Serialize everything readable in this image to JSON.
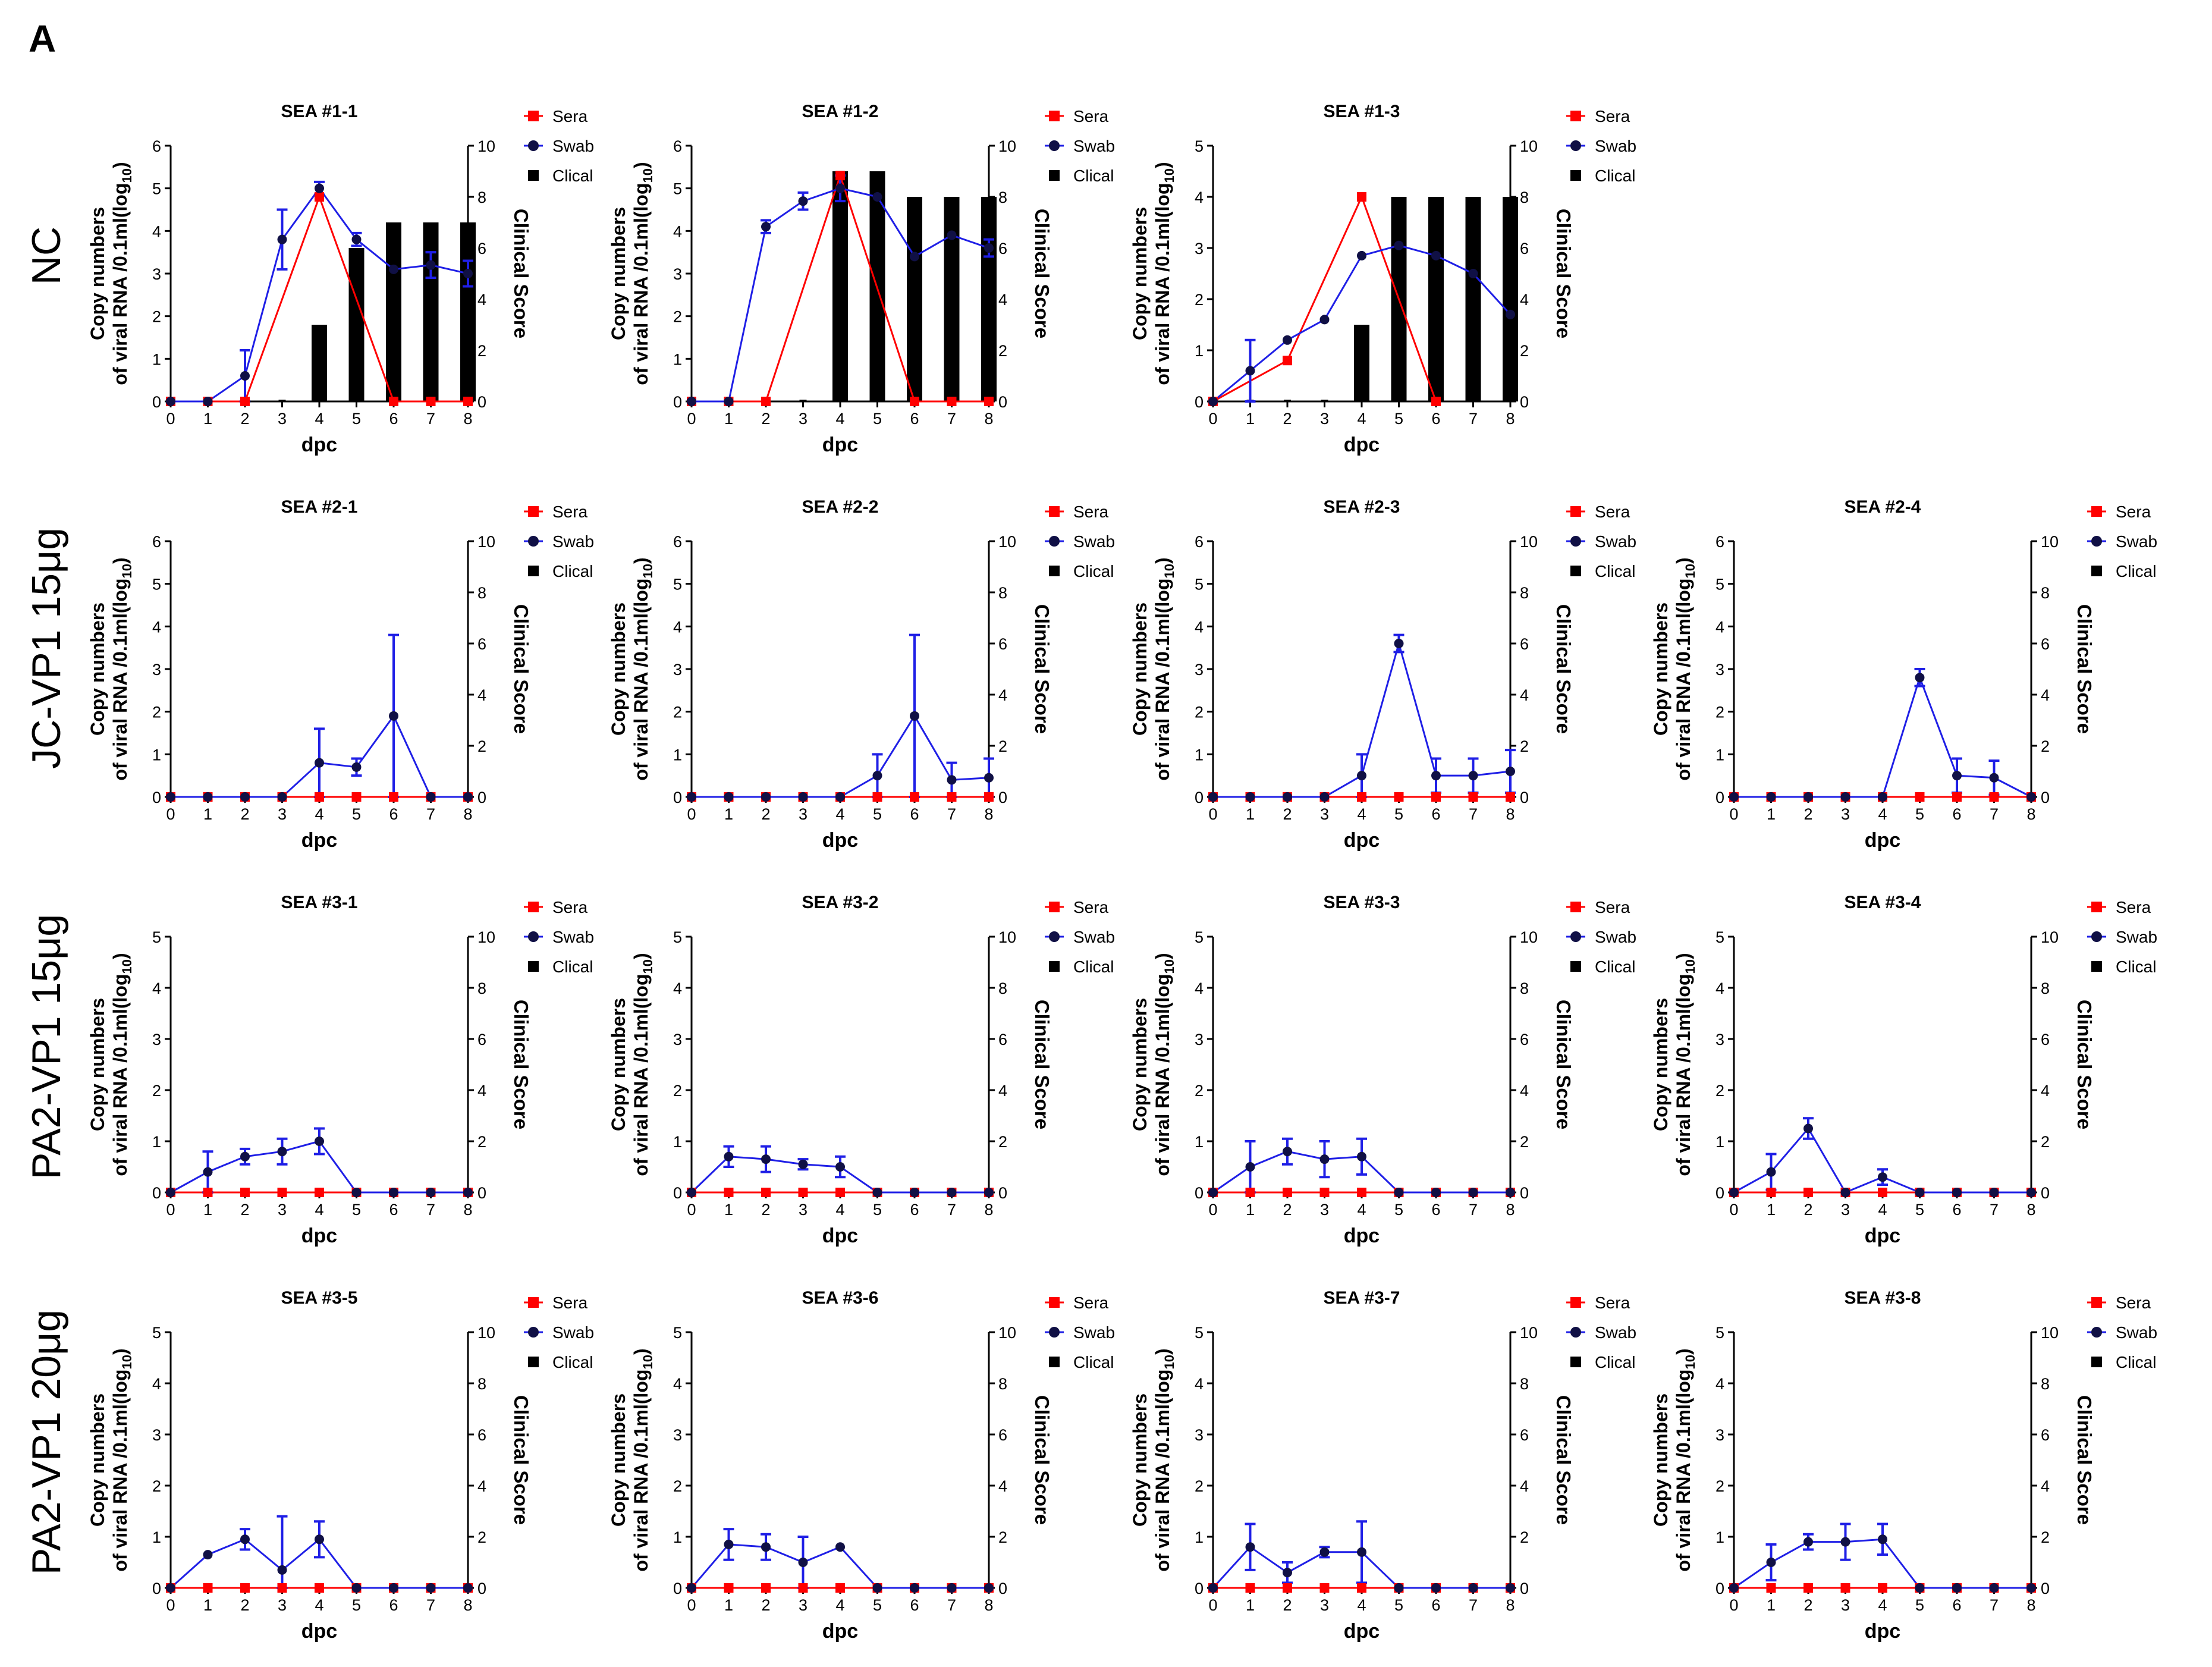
{
  "figure": {
    "panel_letter": "A",
    "rows": [
      "NC",
      "JC-VP1 15μg",
      "PA2-VP1 15μg",
      "PA2-VP1 20μg"
    ],
    "legend": {
      "sera": "Sera",
      "swab": "Swab",
      "clinical": "Clical"
    },
    "colors": {
      "sera": "#ff0000",
      "swab": "#1f1fe6",
      "clinical": "#000000",
      "marker_swab": "#101045"
    },
    "axis": {
      "xlabel": "dpc",
      "ylabel_line1": "Copy numbers",
      "ylabel_line2": "of viral RNA /0.1ml(log",
      "ylabel_sub": "10",
      "ylabel_end": ")",
      "y2label": "Clinical Score"
    }
  },
  "chart_data": [
    {
      "type": "line",
      "title": "SEA #1-1",
      "row": 0,
      "col": 0,
      "x": [
        0,
        1,
        2,
        3,
        4,
        5,
        6,
        7,
        8
      ],
      "ylim": [
        0,
        6
      ],
      "y2lim": [
        0,
        10
      ],
      "series": [
        {
          "name": "Sera",
          "values": [
            0,
            0,
            0,
            null,
            4.8,
            null,
            0,
            0,
            0
          ]
        },
        {
          "name": "Swab",
          "values": [
            0,
            0,
            0.6,
            3.8,
            5.0,
            3.8,
            3.1,
            3.2,
            3.0
          ],
          "err": [
            0,
            0,
            0.6,
            0.7,
            0.15,
            0.15,
            0,
            0.3,
            0.3
          ]
        },
        {
          "name": "Clical",
          "values": [
            0,
            0,
            0,
            0,
            3,
            6,
            7,
            7,
            7
          ]
        }
      ]
    },
    {
      "type": "line",
      "title": "SEA #1-2",
      "row": 0,
      "col": 1,
      "x": [
        0,
        1,
        2,
        3,
        4,
        5,
        6,
        7,
        8
      ],
      "ylim": [
        0,
        6
      ],
      "y2lim": [
        0,
        10
      ],
      "series": [
        {
          "name": "Sera",
          "values": [
            0,
            0,
            0,
            null,
            5.3,
            null,
            0,
            0,
            0
          ]
        },
        {
          "name": "Swab",
          "values": [
            0,
            0,
            4.1,
            4.7,
            5.0,
            4.8,
            3.4,
            3.9,
            3.6
          ],
          "err": [
            0,
            0,
            0.15,
            0.2,
            0.3,
            0,
            0,
            0,
            0.2
          ]
        },
        {
          "name": "Clical",
          "values": [
            0,
            0,
            0,
            0,
            9,
            9,
            8,
            8,
            8
          ]
        }
      ]
    },
    {
      "type": "line",
      "title": "SEA #1-3",
      "row": 0,
      "col": 2,
      "x": [
        0,
        1,
        2,
        3,
        4,
        5,
        6,
        7,
        8
      ],
      "ylim": [
        0,
        5
      ],
      "y2lim": [
        0,
        10
      ],
      "series": [
        {
          "name": "Sera",
          "values": [
            0,
            null,
            0.8,
            null,
            4.0,
            null,
            0,
            null,
            null
          ]
        },
        {
          "name": "Swab",
          "values": [
            0,
            0.6,
            1.2,
            1.6,
            2.85,
            3.05,
            2.85,
            2.5,
            1.7
          ],
          "err": [
            0,
            0.6,
            0,
            0,
            0,
            0,
            0,
            0,
            0
          ]
        },
        {
          "name": "Clical",
          "values": [
            0,
            0,
            0,
            0,
            3,
            8,
            8,
            8,
            8
          ]
        }
      ]
    },
    {
      "type": "line",
      "title": "SEA #2-1",
      "row": 1,
      "col": 0,
      "x": [
        0,
        1,
        2,
        3,
        4,
        5,
        6,
        7,
        8
      ],
      "ylim": [
        0,
        6
      ],
      "y2lim": [
        0,
        10
      ],
      "series": [
        {
          "name": "Sera",
          "values": [
            0,
            0,
            0,
            0,
            0,
            0,
            0,
            0,
            0
          ]
        },
        {
          "name": "Swab",
          "values": [
            0,
            0,
            0,
            0,
            0.8,
            0.7,
            1.9,
            0,
            0
          ],
          "err": [
            0,
            0,
            0,
            0,
            0.8,
            0.2,
            1.9,
            0,
            0
          ]
        },
        {
          "name": "Clical",
          "values": [
            0,
            0,
            0,
            0,
            0,
            0,
            0,
            0,
            0
          ]
        }
      ]
    },
    {
      "type": "line",
      "title": "SEA #2-2",
      "row": 1,
      "col": 1,
      "x": [
        0,
        1,
        2,
        3,
        4,
        5,
        6,
        7,
        8
      ],
      "ylim": [
        0,
        6
      ],
      "y2lim": [
        0,
        10
      ],
      "series": [
        {
          "name": "Sera",
          "values": [
            0,
            0,
            0,
            0,
            0,
            0,
            0,
            0,
            0
          ]
        },
        {
          "name": "Swab",
          "values": [
            0,
            0,
            0,
            0,
            0,
            0.5,
            1.9,
            0.4,
            0.45
          ],
          "err": [
            0,
            0,
            0,
            0,
            0,
            0.5,
            1.9,
            0.4,
            0.45
          ]
        },
        {
          "name": "Clical",
          "values": [
            0,
            0,
            0,
            0,
            0,
            0,
            0,
            0,
            0
          ]
        }
      ]
    },
    {
      "type": "line",
      "title": "SEA #2-3",
      "row": 1,
      "col": 2,
      "x": [
        0,
        1,
        2,
        3,
        4,
        5,
        6,
        7,
        8
      ],
      "ylim": [
        0,
        6
      ],
      "y2lim": [
        0,
        10
      ],
      "series": [
        {
          "name": "Sera",
          "values": [
            0,
            0,
            0,
            0,
            0,
            0,
            0,
            0,
            0
          ]
        },
        {
          "name": "Swab",
          "values": [
            0,
            0,
            0,
            0,
            0.5,
            3.6,
            0.5,
            0.5,
            0.6
          ],
          "err": [
            0,
            0,
            0,
            0,
            0.5,
            0.2,
            0.4,
            0.4,
            0.5
          ]
        },
        {
          "name": "Clical",
          "values": [
            0,
            0,
            0,
            0,
            0,
            0,
            0,
            0,
            0
          ]
        }
      ]
    },
    {
      "type": "line",
      "title": "SEA #2-4",
      "row": 1,
      "col": 3,
      "x": [
        0,
        1,
        2,
        3,
        4,
        5,
        6,
        7,
        8
      ],
      "ylim": [
        0,
        6
      ],
      "y2lim": [
        0,
        10
      ],
      "series": [
        {
          "name": "Sera",
          "values": [
            0,
            0,
            0,
            0,
            0,
            0,
            0,
            0,
            0
          ]
        },
        {
          "name": "Swab",
          "values": [
            0,
            0,
            0,
            0,
            0,
            2.8,
            0.5,
            0.45,
            0
          ],
          "err": [
            0,
            0,
            0,
            0,
            0,
            0.2,
            0.4,
            0.4,
            0
          ]
        },
        {
          "name": "Clical",
          "values": [
            0,
            0,
            0,
            0,
            0,
            0,
            0,
            0,
            0
          ]
        }
      ]
    },
    {
      "type": "line",
      "title": "SEA #3-1",
      "row": 2,
      "col": 0,
      "x": [
        0,
        1,
        2,
        3,
        4,
        5,
        6,
        7,
        8
      ],
      "ylim": [
        0,
        5
      ],
      "y2lim": [
        0,
        10
      ],
      "series": [
        {
          "name": "Sera",
          "values": [
            0,
            0,
            0,
            0,
            0,
            0,
            0,
            0,
            0
          ]
        },
        {
          "name": "Swab",
          "values": [
            0,
            0.4,
            0.7,
            0.8,
            1.0,
            0,
            0,
            0,
            0
          ],
          "err": [
            0,
            0.4,
            0.15,
            0.25,
            0.25,
            0,
            0,
            0,
            0
          ]
        },
        {
          "name": "Clical",
          "values": [
            0,
            0,
            0,
            0,
            0,
            0,
            0,
            0,
            0
          ]
        }
      ]
    },
    {
      "type": "line",
      "title": "SEA #3-2",
      "row": 2,
      "col": 1,
      "x": [
        0,
        1,
        2,
        3,
        4,
        5,
        6,
        7,
        8
      ],
      "ylim": [
        0,
        5
      ],
      "y2lim": [
        0,
        10
      ],
      "series": [
        {
          "name": "Sera",
          "values": [
            0,
            0,
            0,
            0,
            0,
            0,
            0,
            0,
            0
          ]
        },
        {
          "name": "Swab",
          "values": [
            0,
            0.7,
            0.65,
            0.55,
            0.5,
            0,
            0,
            0,
            0
          ],
          "err": [
            0,
            0.2,
            0.25,
            0.1,
            0.2,
            0,
            0,
            0,
            0
          ]
        },
        {
          "name": "Clical",
          "values": [
            0,
            0,
            0,
            0,
            0,
            0,
            0,
            0,
            0
          ]
        }
      ]
    },
    {
      "type": "line",
      "title": "SEA #3-3",
      "row": 2,
      "col": 2,
      "x": [
        0,
        1,
        2,
        3,
        4,
        5,
        6,
        7,
        8
      ],
      "ylim": [
        0,
        5
      ],
      "y2lim": [
        0,
        10
      ],
      "series": [
        {
          "name": "Sera",
          "values": [
            0,
            0,
            0,
            0,
            0,
            0,
            0,
            0,
            0
          ]
        },
        {
          "name": "Swab",
          "values": [
            0,
            0.5,
            0.8,
            0.65,
            0.7,
            0,
            0,
            0,
            0
          ],
          "err": [
            0,
            0.5,
            0.25,
            0.35,
            0.35,
            0,
            0,
            0,
            0
          ]
        },
        {
          "name": "Clical",
          "values": [
            0,
            0,
            0,
            0,
            0,
            0,
            0,
            0,
            0
          ]
        }
      ]
    },
    {
      "type": "line",
      "title": "SEA #3-4",
      "row": 2,
      "col": 3,
      "x": [
        0,
        1,
        2,
        3,
        4,
        5,
        6,
        7,
        8
      ],
      "ylim": [
        0,
        5
      ],
      "y2lim": [
        0,
        10
      ],
      "series": [
        {
          "name": "Sera",
          "values": [
            0,
            0,
            0,
            0,
            0,
            0,
            0,
            0,
            0
          ]
        },
        {
          "name": "Swab",
          "values": [
            0,
            0.4,
            1.25,
            0,
            0.3,
            0,
            0,
            0,
            0
          ],
          "err": [
            0,
            0.35,
            0.2,
            0,
            0.15,
            0,
            0,
            0,
            0
          ]
        },
        {
          "name": "Clical",
          "values": [
            0,
            0,
            0,
            0,
            0,
            0,
            0,
            0,
            0
          ]
        }
      ]
    },
    {
      "type": "line",
      "title": "SEA #3-5",
      "row": 3,
      "col": 0,
      "x": [
        0,
        1,
        2,
        3,
        4,
        5,
        6,
        7,
        8
      ],
      "ylim": [
        0,
        5
      ],
      "y2lim": [
        0,
        10
      ],
      "series": [
        {
          "name": "Sera",
          "values": [
            0,
            0,
            0,
            0,
            0,
            0,
            0,
            0,
            0
          ]
        },
        {
          "name": "Swab",
          "values": [
            0,
            0.65,
            0.95,
            0.35,
            0.95,
            0,
            0,
            0,
            0
          ],
          "err": [
            0,
            0,
            0.2,
            1.05,
            0.35,
            0,
            0,
            0,
            0
          ]
        },
        {
          "name": "Clical",
          "values": [
            0,
            0,
            0,
            0,
            0,
            0,
            0,
            0,
            0
          ]
        }
      ]
    },
    {
      "type": "line",
      "title": "SEA #3-6",
      "row": 3,
      "col": 1,
      "x": [
        0,
        1,
        2,
        3,
        4,
        5,
        6,
        7,
        8
      ],
      "ylim": [
        0,
        5
      ],
      "y2lim": [
        0,
        10
      ],
      "series": [
        {
          "name": "Sera",
          "values": [
            0,
            0,
            0,
            0,
            0,
            0,
            0,
            0,
            0
          ]
        },
        {
          "name": "Swab",
          "values": [
            0,
            0.85,
            0.8,
            0.5,
            0.8,
            0,
            0,
            0,
            0
          ],
          "err": [
            0,
            0.3,
            0.25,
            0.5,
            0,
            0,
            0,
            0,
            0
          ]
        },
        {
          "name": "Clical",
          "values": [
            0,
            0,
            0,
            0,
            0,
            0,
            0,
            0,
            0
          ]
        }
      ]
    },
    {
      "type": "line",
      "title": "SEA #3-7",
      "row": 3,
      "col": 2,
      "x": [
        0,
        1,
        2,
        3,
        4,
        5,
        6,
        7,
        8
      ],
      "ylim": [
        0,
        5
      ],
      "y2lim": [
        0,
        10
      ],
      "series": [
        {
          "name": "Sera",
          "values": [
            0,
            0,
            0,
            0,
            0,
            0,
            0,
            0,
            0
          ]
        },
        {
          "name": "Swab",
          "values": [
            0,
            0.8,
            0.3,
            0.7,
            0.7,
            0,
            0,
            0,
            0
          ],
          "err": [
            0,
            0.45,
            0.2,
            0.1,
            0.6,
            0,
            0,
            0,
            0
          ]
        },
        {
          "name": "Clical",
          "values": [
            0,
            0,
            0,
            0,
            0,
            0,
            0,
            0,
            0
          ]
        }
      ]
    },
    {
      "type": "line",
      "title": "SEA #3-8",
      "row": 3,
      "col": 3,
      "x": [
        0,
        1,
        2,
        3,
        4,
        5,
        6,
        7,
        8
      ],
      "ylim": [
        0,
        5
      ],
      "y2lim": [
        0,
        10
      ],
      "series": [
        {
          "name": "Sera",
          "values": [
            0,
            0,
            0,
            0,
            0,
            0,
            0,
            0,
            0
          ]
        },
        {
          "name": "Swab",
          "values": [
            0,
            0.5,
            0.9,
            0.9,
            0.95,
            0,
            0,
            0,
            0
          ],
          "err": [
            0,
            0.35,
            0.15,
            0.35,
            0.3,
            0,
            0,
            0,
            0
          ]
        },
        {
          "name": "Clical",
          "values": [
            0,
            0,
            0,
            0,
            0,
            0,
            0,
            0,
            0
          ]
        }
      ]
    }
  ]
}
